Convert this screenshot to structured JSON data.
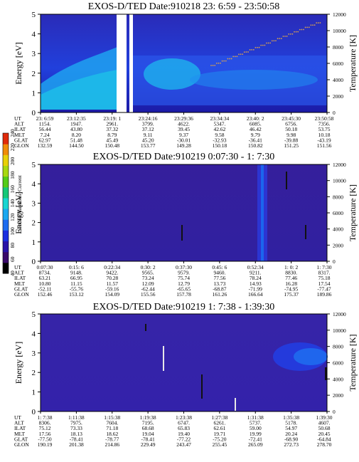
{
  "chart_data": [
    {
      "type": "heatmap",
      "title": "EXOS-D/TED   Date:910218  23: 6:59 - 23:50:58",
      "ylabel": "Energy [eV]",
      "y2label": "Temperature [K]",
      "ylim": [
        0,
        5
      ],
      "yticks": [
        "0",
        "1",
        "2",
        "3",
        "4",
        "5"
      ],
      "y2lim": [
        0,
        12000
      ],
      "y2ticks": [
        "0",
        "2000",
        "4000",
        "6000",
        "8000",
        "10000",
        "12000"
      ],
      "row_labels": [
        "UT",
        "ALT",
        "ILAT",
        "MLT",
        "GLAT",
        "GLON"
      ],
      "columns": [
        [
          "23: 6:59",
          "1154.",
          "56.44",
          "7.24",
          "62.97",
          "132.59"
        ],
        [
          "23:12:35",
          "1947.",
          "43.80",
          "8.20",
          "51.48",
          "144.50"
        ],
        [
          "23:19: 1",
          "2961.",
          "37.32",
          "8.79",
          "45.49",
          "150.48"
        ],
        [
          "23:24:16",
          "3799.",
          "37.12",
          "9.11",
          "45.20",
          "153.77"
        ],
        [
          "23:29:36",
          "4622.",
          "39.45",
          "9.37",
          "-30.01",
          "149.28"
        ],
        [
          "23:34:34",
          "5347.",
          "42.62",
          "9.58",
          "-32.93",
          "150.18"
        ],
        [
          "23:40: 2",
          "6085.",
          "46.42",
          "9.79",
          "-36.41",
          "150.82"
        ],
        [
          "23:45:30",
          "6756.",
          "50.18",
          "9.98",
          "-39.88",
          "151.25"
        ],
        [
          "23:50:58",
          "7356.",
          "53.75",
          "10.18",
          "-43.19",
          "151.56"
        ]
      ]
    },
    {
      "type": "heatmap",
      "title": "EXOS-D/TED   Date:910219  0:07:30 - 1: 7:30",
      "ylabel": "Energy [eV]",
      "y2label": "Temperature [K]",
      "ylim": [
        0,
        5
      ],
      "yticks": [
        "0",
        "1",
        "2",
        "3",
        "4",
        "5"
      ],
      "y2lim": [
        0,
        12000
      ],
      "y2ticks": [
        "0",
        "2000",
        "4000",
        "6000",
        "8000",
        "10000",
        "12000"
      ],
      "row_labels": [
        "UT",
        "ALT",
        "ILAT",
        "MLT",
        "GLAT",
        "GLON"
      ],
      "columns": [
        [
          "0:07:30",
          "8734.",
          "63.21",
          "10.80",
          "-52.11",
          "152.46"
        ],
        [
          "0:15: 6",
          "9148.",
          "66.95",
          "11.15",
          "-55.76",
          "153.12"
        ],
        [
          "0:22:34",
          "9422.",
          "70.28",
          "11.57",
          "-59.16",
          "154.09"
        ],
        [
          "0:30: 2",
          "9565.",
          "73.24",
          "12.09",
          "-62.44",
          "155.56"
        ],
        [
          "0:37:30",
          "9579.",
          "75.74",
          "12.79",
          "-65.65",
          "157.78"
        ],
        [
          "0:45: 6",
          "9460.",
          "77.56",
          "13.73",
          "-68.87",
          "161.26"
        ],
        [
          "0:52:34",
          "9211.",
          "78.24",
          "14.93",
          "-71.99",
          "166.64"
        ],
        [
          "1: 0: 2",
          "8830.",
          "77.46",
          "16.28",
          "-74.95",
          "175.37"
        ],
        [
          "1: 7:30",
          "8317.",
          "75.18",
          "17.54",
          "-77.47",
          "189.86"
        ]
      ]
    },
    {
      "type": "heatmap",
      "title": "EXOS-D/TED   Date:910219  1: 7:38 - 1:39:30",
      "ylabel": "Energy [eV]",
      "y2label": "Temperature [K]",
      "ylim": [
        0,
        5
      ],
      "yticks": [
        "0",
        "1",
        "2",
        "3",
        "4",
        "5"
      ],
      "y2lim": [
        0,
        12000
      ],
      "y2ticks": [
        "0",
        "2000",
        "4000",
        "6000",
        "8000",
        "10000",
        "12000"
      ],
      "row_labels": [
        "UT",
        "ALT",
        "ILAT",
        "MLT",
        "GLAT",
        "GLON"
      ],
      "columns": [
        [
          "1: 7:38",
          "8306.",
          "75.12",
          "17.56",
          "-77.50",
          "190.19"
        ],
        [
          "1:11:38",
          "7975.",
          "73.33",
          "18.13",
          "-78.41",
          "201.38"
        ],
        [
          "1:15:38",
          "7604.",
          "71.18",
          "18.62",
          "-78.77",
          "214.86"
        ],
        [
          "1:19:38",
          "7195.",
          "68.68",
          "19.04",
          "-78.41",
          "229.49"
        ],
        [
          "1:23:38",
          "6747.",
          "65.83",
          "19.40",
          "-77.22",
          "243.47"
        ],
        [
          "1:27:38",
          "6261.",
          "62.61",
          "19.71",
          "-75.20",
          "255.45"
        ],
        [
          "1:31:38",
          "5737.",
          "59.00",
          "19.99",
          "-72.41",
          "265.09"
        ],
        [
          "1:35:38",
          "5178.",
          "54.97",
          "20.24",
          "-68.90",
          "272.73"
        ],
        [
          "1:39:30",
          "4607.",
          "50.68",
          "20.45",
          "-64.84",
          "278.70"
        ]
      ]
    }
  ],
  "colorbar": {
    "label": "Second Harmonic Current",
    "ticks": [
      "40",
      "60",
      "80",
      "100",
      "120",
      "140",
      "160",
      "180",
      "200",
      "220",
      "240"
    ],
    "colors": [
      "#000000",
      "#3a0a6a",
      "#2a14a8",
      "#1b2fe0",
      "#1e6cf0",
      "#19a8f0",
      "#17d6d2",
      "#16c878",
      "#54cc18",
      "#a8d810",
      "#e8d008",
      "#f08c08",
      "#e02a0a"
    ]
  }
}
